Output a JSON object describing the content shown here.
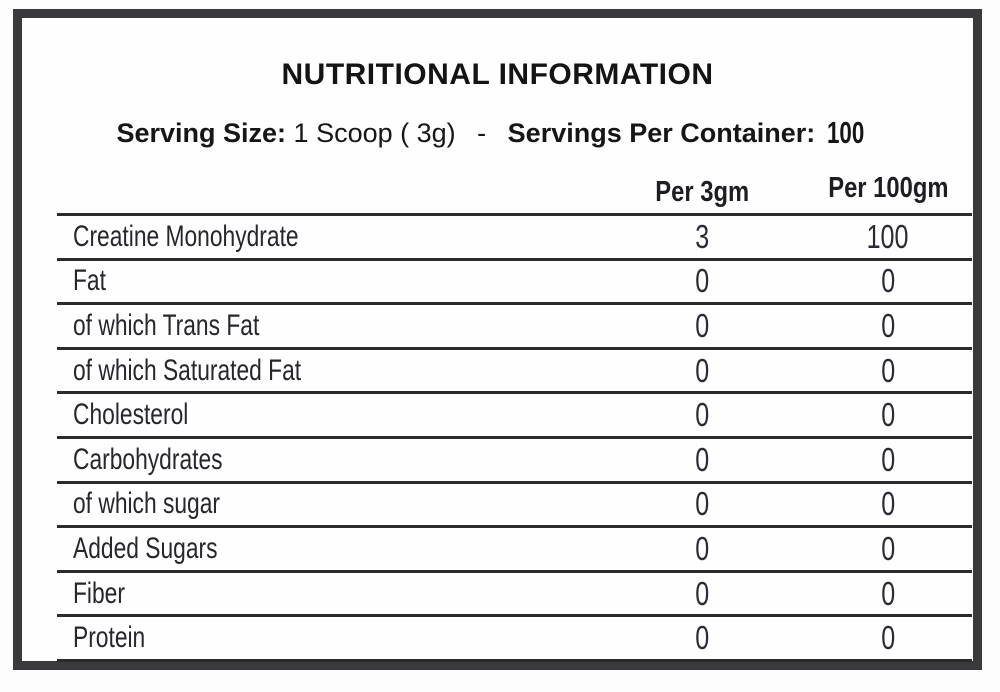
{
  "title": "NUTRITIONAL INFORMATION",
  "serving": {
    "size_label": "Serving Size:",
    "size_value": "1 Scoop ( 3g)",
    "separator": "-",
    "container_label": "Servings Per Container:",
    "container_value": "100"
  },
  "table": {
    "type": "table",
    "columns": [
      "Per 3gm",
      "Per 100gm"
    ],
    "rows": [
      {
        "label": "Creatine Monohydrate",
        "per_3gm": "3",
        "per_100gm": "100"
      },
      {
        "label": "Fat",
        "per_3gm": "0",
        "per_100gm": "0"
      },
      {
        "label": "of which Trans Fat",
        "per_3gm": "0",
        "per_100gm": "0"
      },
      {
        "label": "of which Saturated Fat",
        "per_3gm": "0",
        "per_100gm": "0"
      },
      {
        "label": "Cholesterol",
        "per_3gm": "0",
        "per_100gm": "0"
      },
      {
        "label": "Carbohydrates",
        "per_3gm": "0",
        "per_100gm": "0"
      },
      {
        "label": "of which sugar",
        "per_3gm": "0",
        "per_100gm": "0"
      },
      {
        "label": "Added Sugars",
        "per_3gm": "0",
        "per_100gm": "0"
      },
      {
        "label": "Fiber",
        "per_3gm": "0",
        "per_100gm": "0"
      },
      {
        "label": "Protein",
        "per_3gm": "0",
        "per_100gm": "0"
      }
    ]
  },
  "colors": {
    "frame_border": "#3a3a3c",
    "rule_line": "#2b2b2b",
    "text": "#26262c",
    "background": "#fefefe"
  }
}
